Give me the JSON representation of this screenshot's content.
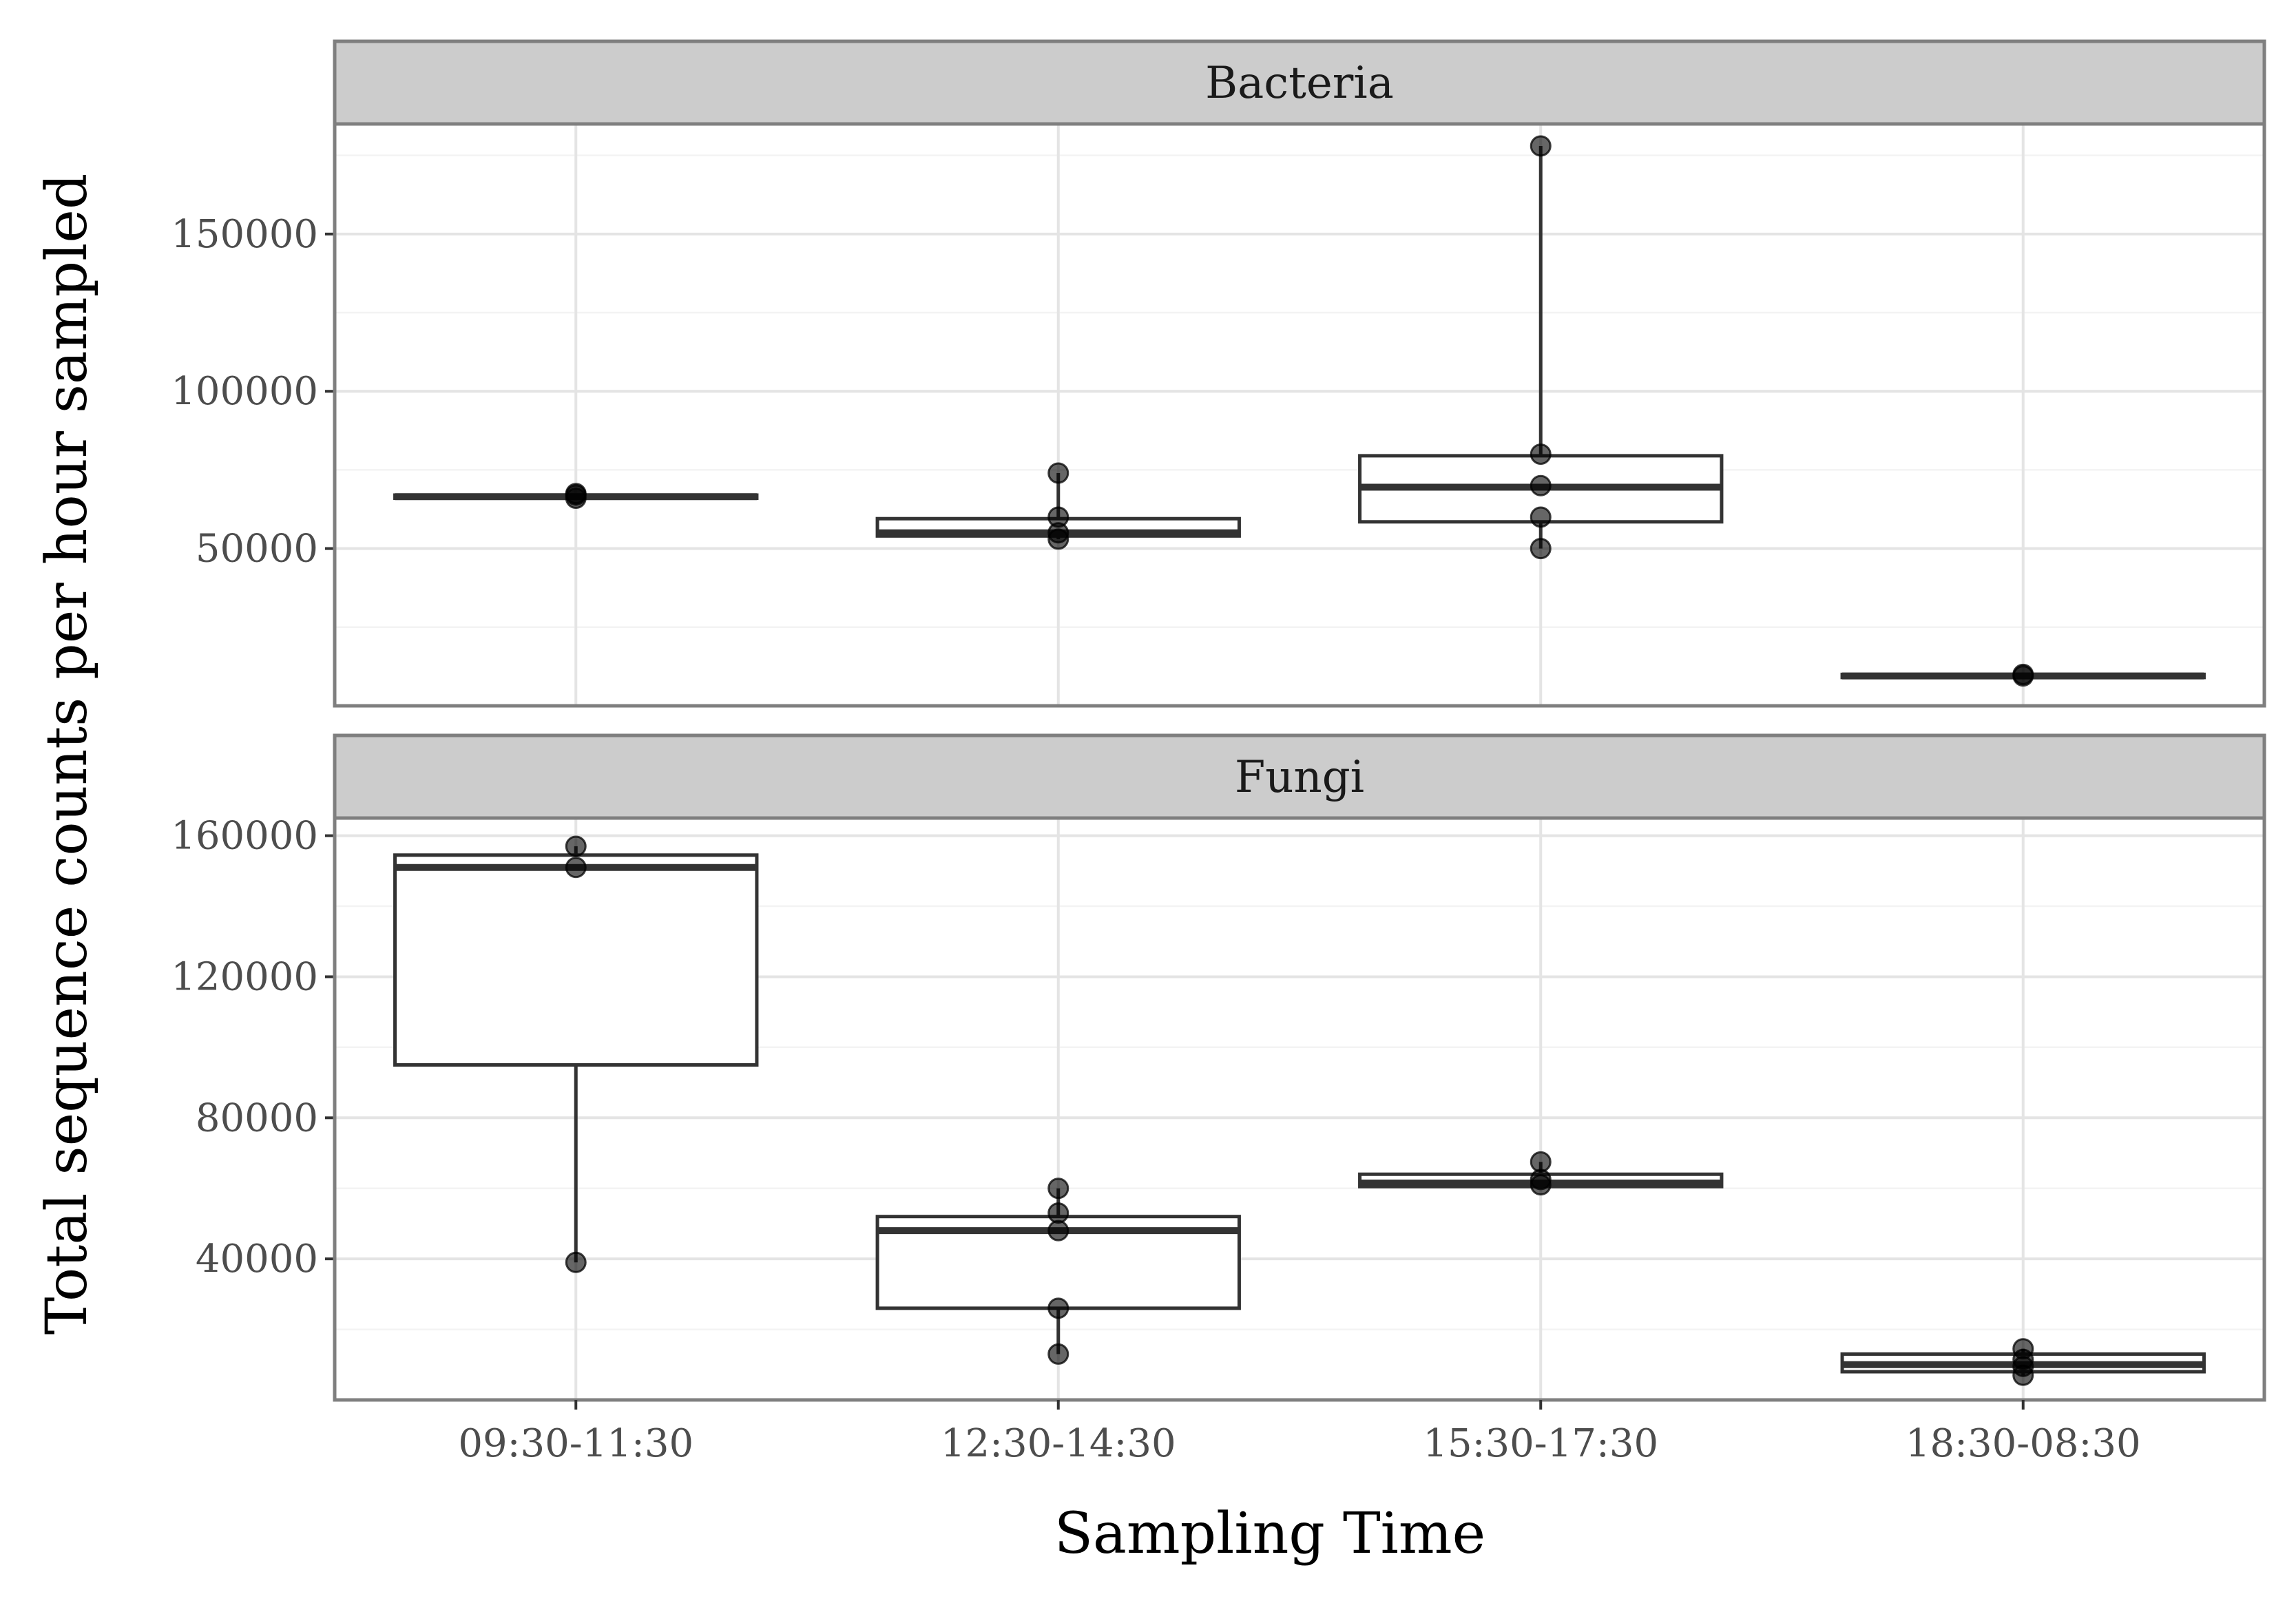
{
  "chart_data": {
    "type": "boxplot",
    "xlabel": "Sampling Time",
    "ylabel": "Total sequence counts per hour sampled",
    "categories": [
      "09:30-11:30",
      "12:30-14:30",
      "15:30-17:30",
      "18:30-08:30"
    ],
    "facets": [
      {
        "name": "Bacteria",
        "ylim": [
          0,
          185000
        ],
        "yticks": [
          50000,
          100000,
          150000
        ],
        "ytick_labels": [
          "50000",
          "100000",
          "150000"
        ],
        "boxes": [
          {
            "category": "09:30-11:30",
            "min": 66000,
            "q1": 66000,
            "median": 66500,
            "q3": 67000,
            "max": 67500,
            "points": [
              66000,
              67000,
              67500
            ]
          },
          {
            "category": "12:30-14:30",
            "min": 53000,
            "q1": 54000,
            "median": 55000,
            "q3": 59500,
            "max": 74000,
            "points": [
              53000,
              55000,
              60000,
              74000
            ]
          },
          {
            "category": "15:30-17:30",
            "min": 50000,
            "q1": 58500,
            "median": 69500,
            "q3": 79500,
            "max": 178000,
            "points": [
              50000,
              60000,
              70000,
              80000,
              178000
            ]
          },
          {
            "category": "18:30-08:30",
            "min": 9000,
            "q1": 9000,
            "median": 9500,
            "q3": 10000,
            "max": 10000,
            "points": [
              9500,
              10000
            ]
          }
        ]
      },
      {
        "name": "Fungi",
        "ylim": [
          0,
          165000
        ],
        "yticks": [
          40000,
          80000,
          120000,
          160000
        ],
        "ytick_labels": [
          "40000",
          "80000",
          "120000",
          "160000"
        ],
        "boxes": [
          {
            "category": "09:30-11:30",
            "min": 39000,
            "q1": 95000,
            "median": 151000,
            "q3": 154500,
            "max": 157000,
            "points": [
              39000,
              151000,
              157000
            ]
          },
          {
            "category": "12:30-14:30",
            "min": 13000,
            "q1": 26000,
            "median": 48000,
            "q3": 52000,
            "max": 60000,
            "points": [
              13000,
              26000,
              48000,
              53000,
              60000
            ]
          },
          {
            "category": "15:30-17:30",
            "min": 60500,
            "q1": 60500,
            "median": 61500,
            "q3": 64000,
            "max": 67500,
            "points": [
              61000,
              62500,
              67500
            ]
          },
          {
            "category": "18:30-08:30",
            "min": 7000,
            "q1": 8000,
            "median": 10000,
            "q3": 13000,
            "max": 14500,
            "points": [
              7000,
              9500,
              11500,
              14500
            ]
          }
        ]
      }
    ]
  }
}
